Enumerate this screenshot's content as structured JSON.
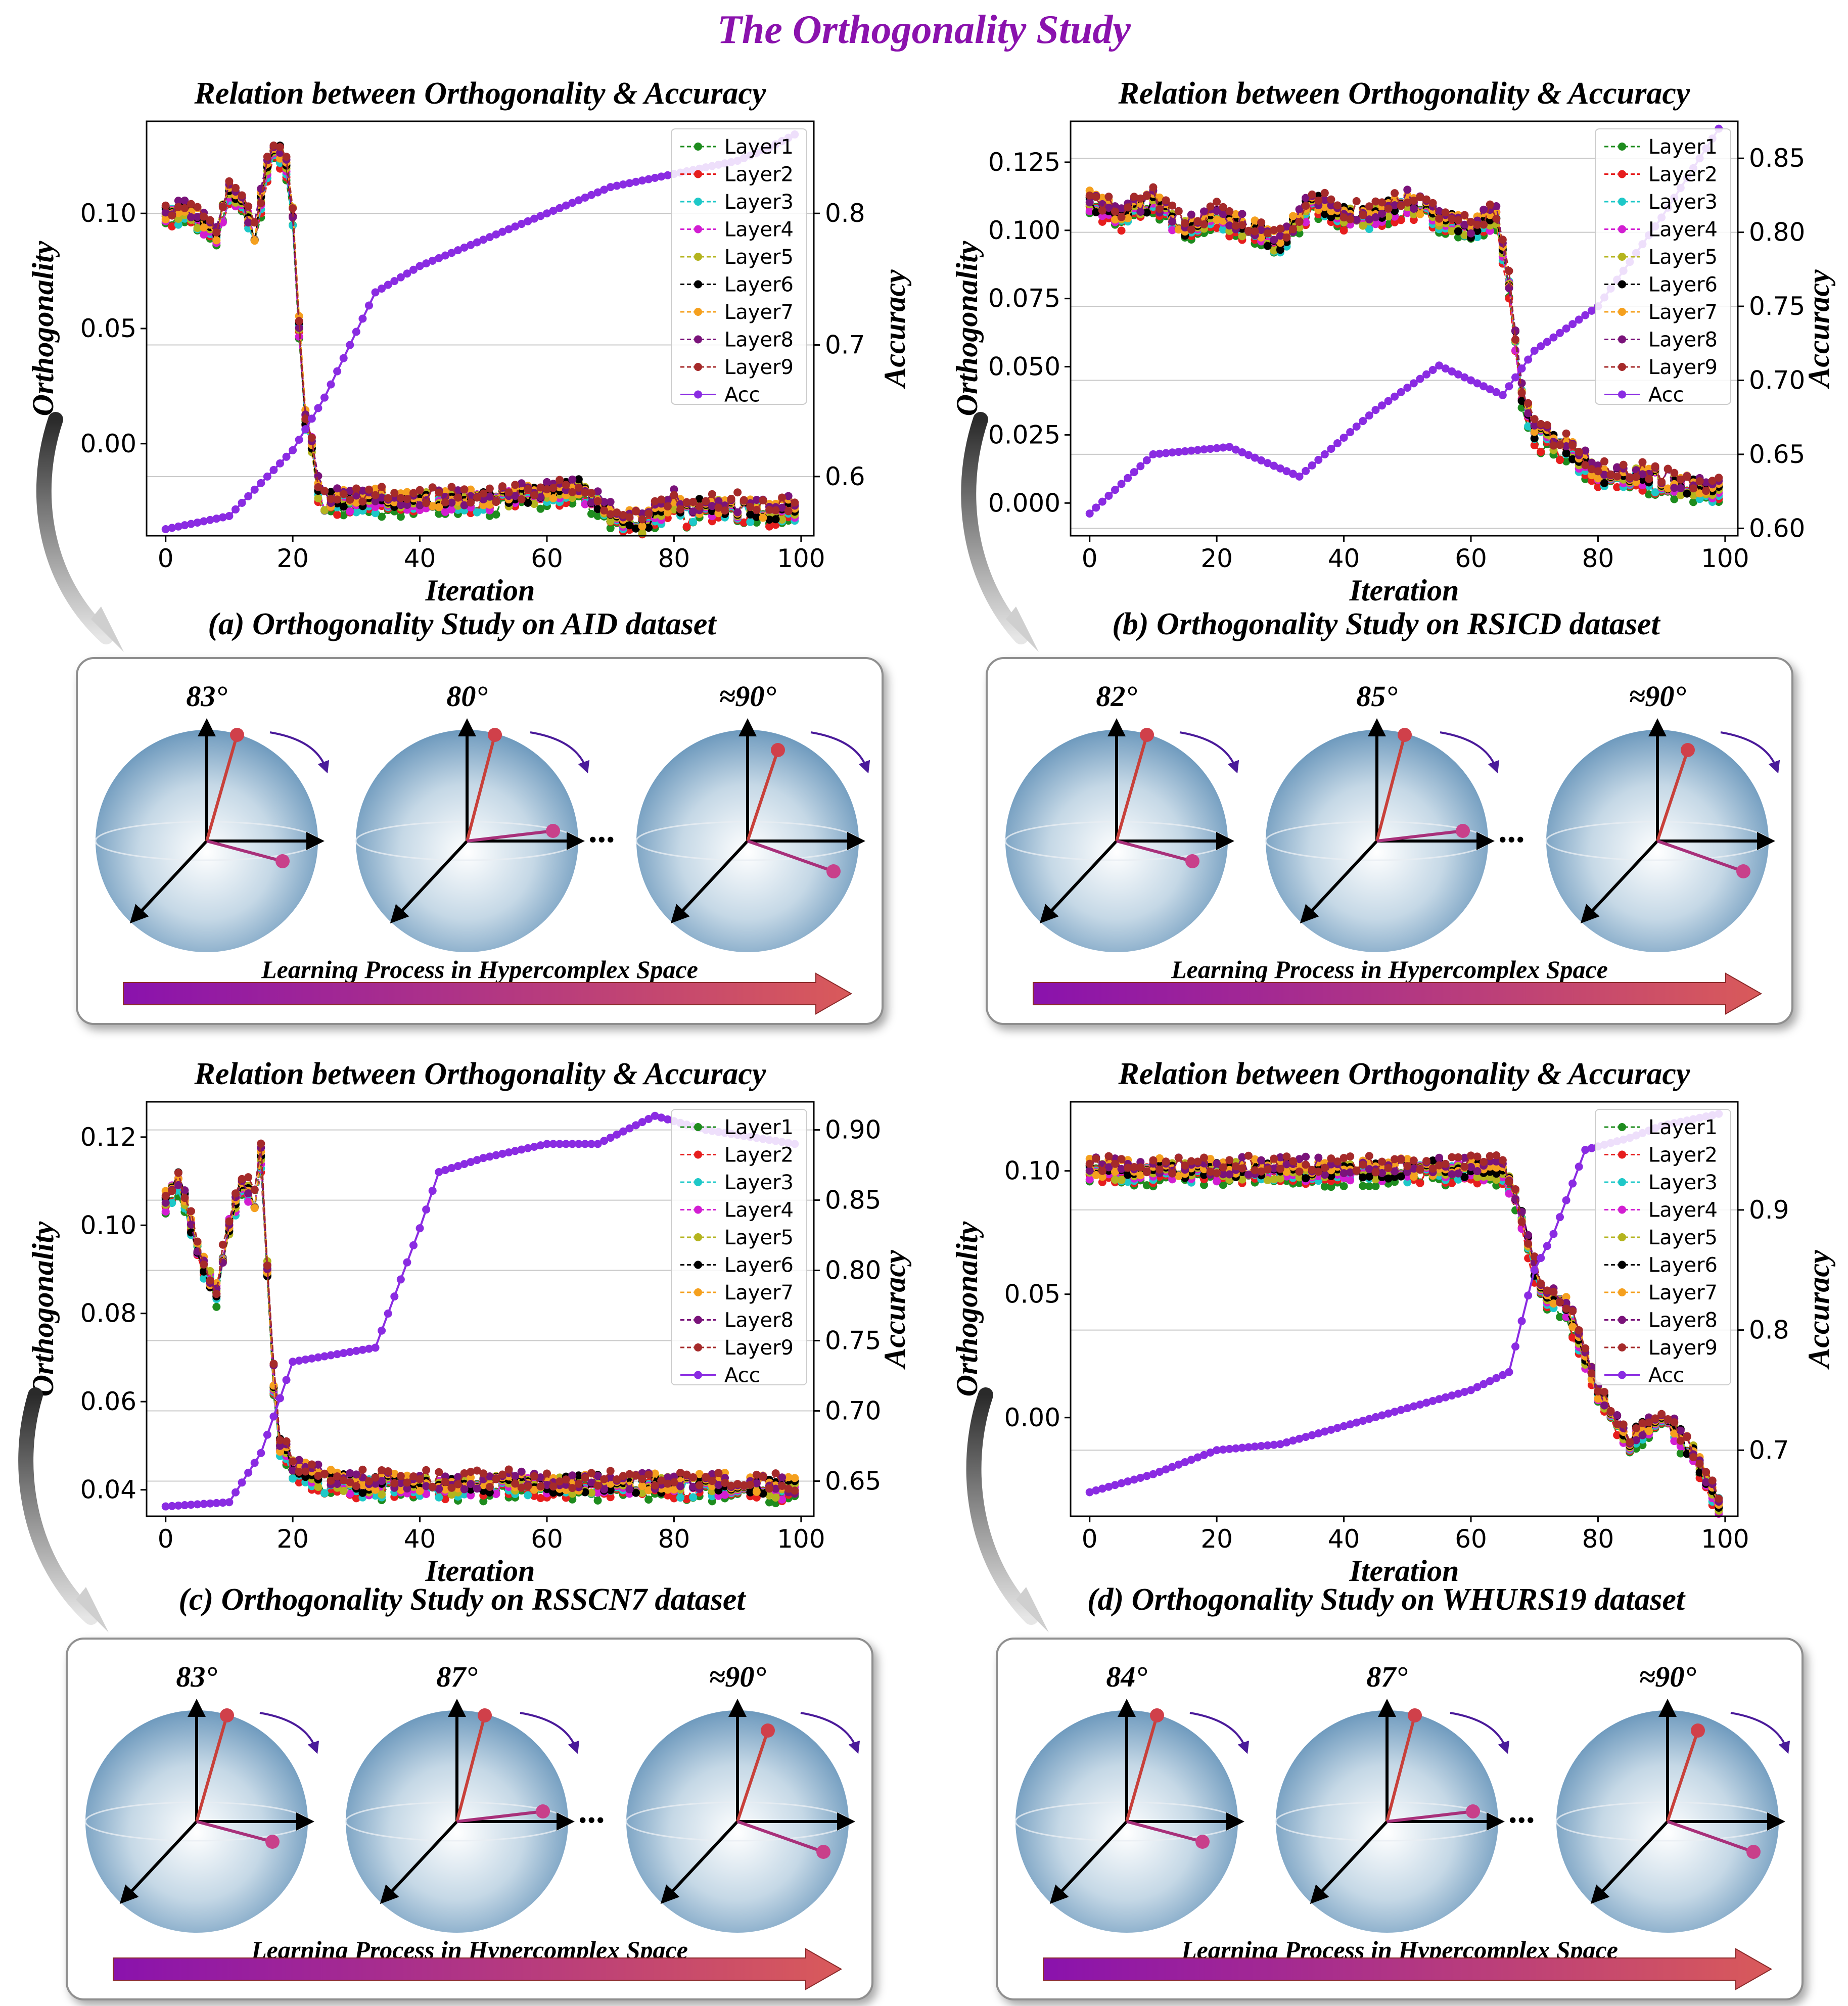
{
  "figure": {
    "title": "The Orthogonality Study",
    "chart_title": "Relation between Orthogonality & Accuracy",
    "xlabel": "Iteration",
    "ylabel_left": "Orthogonality",
    "ylabel_right": "Accuracy",
    "learning_label": "Learning Process in Hypercomplex Space",
    "ellipsis": "...",
    "legend": [
      "Layer1",
      "Layer2",
      "Layer3",
      "Layer4",
      "Layer5",
      "Layer6",
      "Layer7",
      "Layer8",
      "Layer9",
      "Acc"
    ],
    "colors": {
      "Layer1": "#1e8c1e",
      "Layer2": "#e61e1e",
      "Layer3": "#1ec8c8",
      "Layer4": "#d21ed2",
      "Layer5": "#b4b41e",
      "Layer6": "#000000",
      "Layer7": "#f5a01e",
      "Layer8": "#7a137a",
      "Layer9": "#a52a2a",
      "Acc": "#8a2be2"
    },
    "panels": [
      {
        "caption": "(a) Orthogonality Study on AID dataset",
        "angles": [
          "83°",
          "80°",
          "≈90°"
        ]
      },
      {
        "caption": "(b) Orthogonality Study on RSICD dataset",
        "angles": [
          "82°",
          "85°",
          "≈90°"
        ]
      },
      {
        "caption": "(c) Orthogonality Study on RSSCN7 dataset",
        "angles": [
          "83°",
          "87°",
          "≈90°"
        ]
      },
      {
        "caption": "(d) Orthogonality Study on WHURS19 dataset",
        "angles": [
          "84°",
          "87°",
          "≈90°"
        ]
      }
    ]
  },
  "chart_data": [
    {
      "type": "line",
      "title": "Relation between Orthogonality & Accuracy",
      "dataset": "AID",
      "xlabel": "Iteration",
      "ylabel": "Orthogonality",
      "y2label": "Accuracy",
      "xlim": [
        -3,
        102
      ],
      "ylim": [
        -0.04,
        0.14
      ],
      "y2lim": [
        0.555,
        0.87
      ],
      "xticks": [
        0,
        20,
        40,
        60,
        80,
        100
      ],
      "yticks": [
        0.0,
        0.05,
        0.1
      ],
      "ytick_labels": [
        "0.00",
        "0.05",
        "0.10"
      ],
      "y2ticks": [
        0.6,
        0.7,
        0.8
      ],
      "y2tick_labels": [
        "0.6",
        "0.7",
        "0.8"
      ],
      "ortho_x": [
        0,
        2,
        4,
        6,
        8,
        10,
        12,
        14,
        16,
        17,
        18,
        19,
        20,
        21,
        22,
        23,
        24,
        25,
        30,
        40,
        50,
        60,
        65,
        70,
        75,
        78,
        80,
        82,
        85,
        90,
        95,
        99
      ],
      "ortho_y": [
        0.1,
        0.1,
        0.1,
        0.095,
        0.09,
        0.11,
        0.105,
        0.09,
        0.12,
        0.125,
        0.125,
        0.12,
        0.1,
        0.05,
        0.01,
        0.0,
        -0.02,
        -0.025,
        -0.025,
        -0.025,
        -0.025,
        -0.022,
        -0.02,
        -0.03,
        -0.035,
        -0.03,
        -0.025,
        -0.03,
        -0.028,
        -0.028,
        -0.03,
        -0.028
      ],
      "acc_x": [
        0,
        10,
        20,
        25,
        33,
        40,
        50,
        60,
        65,
        70,
        80,
        90,
        95,
        99
      ],
      "acc_y": [
        0.56,
        0.57,
        0.62,
        0.66,
        0.74,
        0.76,
        0.78,
        0.8,
        0.81,
        0.82,
        0.83,
        0.84,
        0.85,
        0.86
      ],
      "legend_loc": "upper right"
    },
    {
      "type": "line",
      "title": "Relation between Orthogonality & Accuracy",
      "dataset": "RSICD",
      "xlabel": "Iteration",
      "ylabel": "Orthogonality",
      "y2label": "Accuracy",
      "xlim": [
        -3,
        102
      ],
      "ylim": [
        -0.012,
        0.14
      ],
      "y2lim": [
        0.595,
        0.875
      ],
      "xticks": [
        0,
        20,
        40,
        60,
        80,
        100
      ],
      "yticks": [
        0.0,
        0.025,
        0.05,
        0.075,
        0.1,
        0.125
      ],
      "ytick_labels": [
        "0.000",
        "0.025",
        "0.050",
        "0.075",
        "0.100",
        "0.125"
      ],
      "y2ticks": [
        0.6,
        0.65,
        0.7,
        0.75,
        0.8,
        0.85
      ],
      "y2tick_labels": [
        "0.60",
        "0.65",
        "0.70",
        "0.75",
        "0.80",
        "0.85"
      ],
      "ortho_x": [
        0,
        5,
        10,
        15,
        20,
        25,
        30,
        35,
        40,
        45,
        50,
        55,
        60,
        64,
        66,
        68,
        70,
        75,
        80,
        85,
        90,
        95,
        99
      ],
      "ortho_y": [
        0.11,
        0.105,
        0.11,
        0.1,
        0.105,
        0.1,
        0.095,
        0.11,
        0.105,
        0.105,
        0.11,
        0.105,
        0.1,
        0.105,
        0.08,
        0.04,
        0.025,
        0.02,
        0.01,
        0.01,
        0.008,
        0.005,
        0.005
      ],
      "acc_x": [
        0,
        10,
        22,
        33,
        45,
        55,
        60,
        65,
        70,
        80,
        90,
        99
      ],
      "acc_y": [
        0.61,
        0.65,
        0.655,
        0.635,
        0.68,
        0.71,
        0.7,
        0.69,
        0.72,
        0.75,
        0.81,
        0.87
      ],
      "legend_loc": "upper right"
    },
    {
      "type": "line",
      "title": "Relation between Orthogonality & Accuracy",
      "dataset": "RSSCN7",
      "xlabel": "Iteration",
      "ylabel": "Orthogonality",
      "y2label": "Accuracy",
      "xlim": [
        -3,
        102
      ],
      "ylim": [
        0.034,
        0.128
      ],
      "y2lim": [
        0.625,
        0.92
      ],
      "xticks": [
        0,
        20,
        40,
        60,
        80,
        100
      ],
      "yticks": [
        0.04,
        0.06,
        0.08,
        0.1,
        0.12
      ],
      "ytick_labels": [
        "0.04",
        "0.06",
        "0.08",
        "0.10",
        "0.12"
      ],
      "y2ticks": [
        0.65,
        0.7,
        0.75,
        0.8,
        0.85,
        0.9
      ],
      "y2tick_labels": [
        "0.65",
        "0.70",
        "0.75",
        "0.80",
        "0.85",
        "0.90"
      ],
      "ortho_x": [
        0,
        2,
        4,
        6,
        8,
        10,
        12,
        14,
        15,
        16,
        17,
        18,
        20,
        25,
        30,
        40,
        50,
        60,
        70,
        80,
        90,
        99
      ],
      "ortho_y": [
        0.105,
        0.11,
        0.1,
        0.09,
        0.085,
        0.1,
        0.11,
        0.105,
        0.115,
        0.09,
        0.065,
        0.05,
        0.045,
        0.042,
        0.041,
        0.041,
        0.041,
        0.041,
        0.041,
        0.041,
        0.041,
        0.04
      ],
      "acc_x": [
        0,
        10,
        15,
        20,
        33,
        40,
        43,
        50,
        60,
        68,
        77,
        85,
        99
      ],
      "acc_y": [
        0.632,
        0.635,
        0.67,
        0.735,
        0.745,
        0.83,
        0.87,
        0.88,
        0.89,
        0.89,
        0.91,
        0.9,
        0.89
      ],
      "legend_loc": "upper right"
    },
    {
      "type": "line",
      "title": "Relation between Orthogonality & Accuracy",
      "dataset": "WHURS19",
      "xlabel": "Iteration",
      "ylabel": "Orthogonality",
      "y2label": "Accuracy",
      "xlim": [
        -3,
        102
      ],
      "ylim": [
        -0.04,
        0.128
      ],
      "y2lim": [
        0.645,
        0.99
      ],
      "xticks": [
        0,
        20,
        40,
        60,
        80,
        100
      ],
      "yticks": [
        0.0,
        0.05,
        0.1
      ],
      "ytick_labels": [
        "0.00",
        "0.05",
        "0.10"
      ],
      "y2ticks": [
        0.7,
        0.8,
        0.9
      ],
      "y2tick_labels": [
        "0.7",
        "0.8",
        "0.9"
      ],
      "ortho_x": [
        0,
        5,
        10,
        15,
        20,
        25,
        30,
        35,
        40,
        45,
        50,
        55,
        60,
        65,
        67,
        70,
        72,
        75,
        80,
        85,
        90,
        95,
        99
      ],
      "ortho_y": [
        0.1,
        0.1,
        0.1,
        0.1,
        0.1,
        0.1,
        0.1,
        0.1,
        0.1,
        0.1,
        0.1,
        0.1,
        0.1,
        0.1,
        0.09,
        0.06,
        0.05,
        0.045,
        0.01,
        -0.01,
        0.0,
        -0.015,
        -0.035
      ],
      "acc_x": [
        0,
        10,
        20,
        30,
        40,
        50,
        60,
        66,
        70,
        73,
        78,
        85,
        90,
        99
      ],
      "acc_y": [
        0.665,
        0.68,
        0.7,
        0.705,
        0.72,
        0.735,
        0.75,
        0.765,
        0.85,
        0.88,
        0.95,
        0.96,
        0.97,
        0.98
      ],
      "legend_loc": "upper right"
    }
  ]
}
